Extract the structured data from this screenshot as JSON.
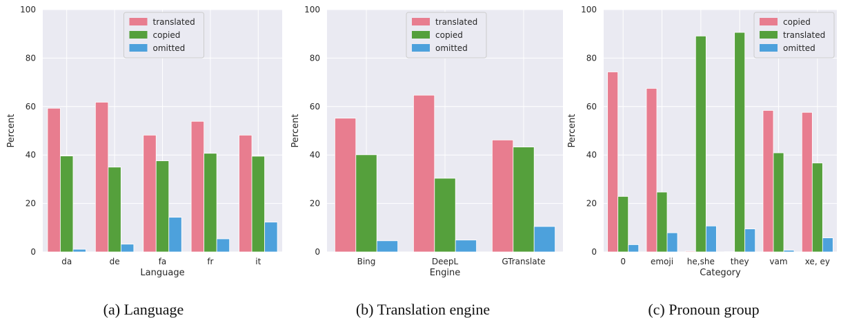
{
  "chart_data": [
    {
      "type": "bar",
      "caption": "(a) Language",
      "xlabel": "Language",
      "ylabel": "Percent",
      "ylim": [
        0,
        100
      ],
      "yticks": [
        0,
        20,
        40,
        60,
        80,
        100
      ],
      "grid": true,
      "legend_position": "top-center",
      "categories": [
        "da",
        "de",
        "fa",
        "fr",
        "it"
      ],
      "series": [
        {
          "name": "translated",
          "color": "#e87d8f",
          "values": [
            59.3,
            61.8,
            48.2,
            53.9,
            48.2
          ]
        },
        {
          "name": "copied",
          "color": "#55a03c",
          "values": [
            39.6,
            35.0,
            37.6,
            40.7,
            39.5
          ]
        },
        {
          "name": "omitted",
          "color": "#4da1dc",
          "values": [
            1.1,
            3.2,
            14.3,
            5.4,
            12.3
          ]
        }
      ]
    },
    {
      "type": "bar",
      "caption": "(b) Translation engine",
      "xlabel": "Engine",
      "ylabel": "Percent",
      "ylim": [
        0,
        100
      ],
      "yticks": [
        0,
        20,
        40,
        60,
        80,
        100
      ],
      "grid": true,
      "legend_position": "top-center",
      "categories": [
        "Bing",
        "DeepL",
        "GTranslate"
      ],
      "series": [
        {
          "name": "translated",
          "color": "#e87d8f",
          "values": [
            55.2,
            64.7,
            46.2
          ]
        },
        {
          "name": "copied",
          "color": "#55a03c",
          "values": [
            40.1,
            30.4,
            43.3
          ]
        },
        {
          "name": "omitted",
          "color": "#4da1dc",
          "values": [
            4.6,
            4.9,
            10.5
          ]
        }
      ]
    },
    {
      "type": "bar",
      "caption": "(c) Pronoun group",
      "xlabel": "Category",
      "ylabel": "Percent",
      "ylim": [
        0,
        100
      ],
      "yticks": [
        0,
        20,
        40,
        60,
        80,
        100
      ],
      "grid": true,
      "legend_position": "top-right",
      "categories": [
        "0",
        "emoji",
        "he,she",
        "they",
        "vam",
        "xe, ey"
      ],
      "series": [
        {
          "name": "copied",
          "color": "#e87d8f",
          "values": [
            74.3,
            67.5,
            0.3,
            0.1,
            58.4,
            57.6
          ]
        },
        {
          "name": "translated",
          "color": "#55a03c",
          "values": [
            22.9,
            24.7,
            89.1,
            90.6,
            40.9,
            36.7
          ]
        },
        {
          "name": "omitted",
          "color": "#4da1dc",
          "values": [
            3.0,
            7.9,
            10.7,
            9.5,
            0.7,
            5.8
          ]
        }
      ]
    }
  ]
}
